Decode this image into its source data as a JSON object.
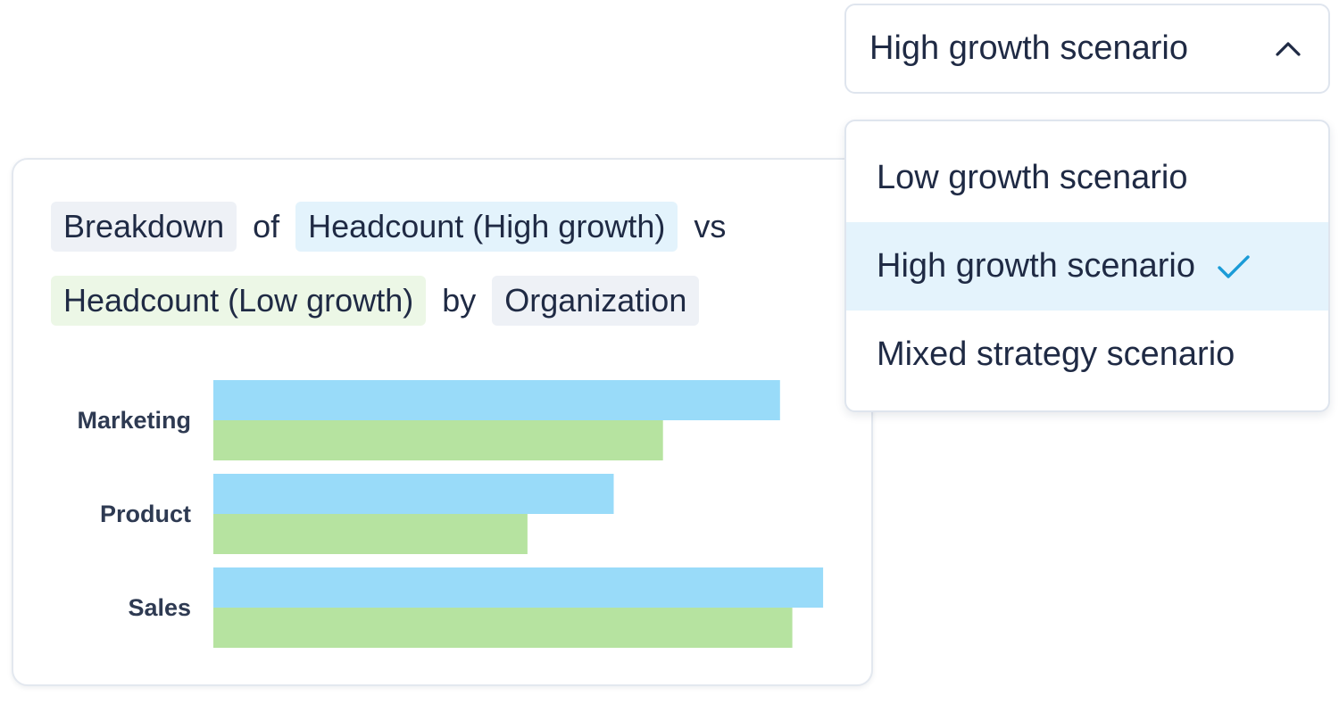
{
  "dropdown": {
    "selected": "High growth scenario",
    "options": [
      "Low growth scenario",
      "High growth scenario",
      "Mixed strategy scenario"
    ],
    "selected_index": 1,
    "expanded": true,
    "icons": {
      "toggle": "chevron-up-icon",
      "selected": "checkmark-icon"
    }
  },
  "title": {
    "measure": "Breakdown",
    "of": "of",
    "series_a": "Headcount (High growth)",
    "vs": "vs",
    "series_b": "Headcount (Low growth)",
    "by": "by",
    "dimension": "Organization"
  },
  "colors": {
    "series_a": "#99dbf9",
    "series_b": "#b6e3a0",
    "check": "#1a9bd7"
  },
  "chart_data": {
    "type": "bar",
    "orientation": "horizontal",
    "categories": [
      "Marketing",
      "Product",
      "Sales"
    ],
    "series": [
      {
        "name": "Headcount (High growth)",
        "values": [
          92,
          65,
          99
        ]
      },
      {
        "name": "Headcount (Low growth)",
        "values": [
          73,
          51,
          94
        ]
      }
    ],
    "xlim": [
      0,
      100
    ],
    "grid": false
  }
}
